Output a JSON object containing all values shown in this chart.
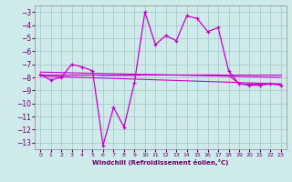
{
  "xlabel": "Windchill (Refroidissement éolien,°C)",
  "xlim": [
    -0.5,
    23.5
  ],
  "ylim": [
    -13.5,
    -2.5
  ],
  "yticks": [
    -13,
    -12,
    -11,
    -10,
    -9,
    -8,
    -7,
    -6,
    -5,
    -4,
    -3
  ],
  "xticks": [
    0,
    1,
    2,
    3,
    4,
    5,
    6,
    7,
    8,
    9,
    10,
    11,
    12,
    13,
    14,
    15,
    16,
    17,
    18,
    19,
    20,
    21,
    22,
    23
  ],
  "background_color": "#ceeaea",
  "grid_color": "#aacccc",
  "line_color": "#cc00cc",
  "line1_x": [
    0,
    1,
    2,
    3,
    4,
    5,
    6,
    7,
    8,
    9,
    10,
    11,
    12,
    13,
    14,
    15,
    16,
    17,
    18,
    19,
    20,
    21,
    22,
    23
  ],
  "line1_y": [
    -7.8,
    -8.2,
    -8.0,
    -7.0,
    -7.2,
    -7.5,
    -13.2,
    -10.3,
    -11.8,
    -8.4,
    -3.0,
    -5.5,
    -4.8,
    -5.2,
    -3.3,
    -3.5,
    -4.5,
    -4.2,
    -7.5,
    -8.5,
    -8.6,
    -8.6,
    -8.5,
    -8.6
  ],
  "line2_x": [
    0,
    1,
    2,
    3,
    4,
    5,
    6,
    7,
    8,
    9,
    10,
    11,
    12,
    13,
    14,
    15,
    16,
    17,
    18,
    19,
    20,
    21,
    22,
    23
  ],
  "line2_y": [
    -7.8,
    -7.8,
    -7.8,
    -7.8,
    -7.8,
    -7.8,
    -7.8,
    -7.8,
    -7.8,
    -7.8,
    -7.8,
    -7.8,
    -7.8,
    -7.8,
    -7.8,
    -7.8,
    -7.8,
    -7.8,
    -7.8,
    -7.8,
    -7.8,
    -7.8,
    -7.8,
    -7.8
  ],
  "line3_x": [
    0,
    23
  ],
  "line3_y": [
    -7.6,
    -8.0
  ],
  "line4_x": [
    0,
    23
  ],
  "line4_y": [
    -7.9,
    -8.5
  ],
  "line5_x": [
    0,
    1,
    2,
    3,
    4,
    5,
    6,
    7,
    8,
    9,
    10,
    11,
    12,
    13,
    14,
    15,
    16,
    17,
    18,
    19,
    20,
    21,
    22,
    23
  ],
  "line5_y": [
    -7.8,
    -7.85,
    -7.85,
    -7.82,
    -7.82,
    -7.82,
    -7.85,
    -7.85,
    -7.85,
    -7.85,
    -7.82,
    -7.82,
    -7.82,
    -7.82,
    -7.82,
    -7.82,
    -7.82,
    -7.82,
    -7.85,
    -8.5,
    -8.52,
    -8.52,
    -8.52,
    -8.52
  ]
}
